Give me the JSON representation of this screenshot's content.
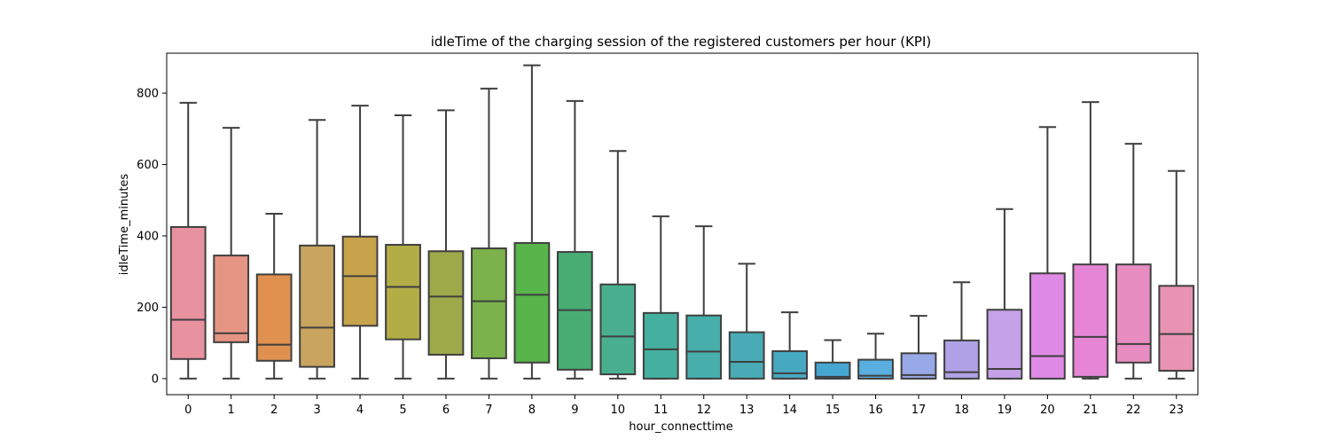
{
  "chart_data": {
    "type": "box",
    "title": "idleTime of the charging session of the registered customers per hour (KPI)",
    "xlabel": "hour_connecttime",
    "ylabel": "idleTime_minutes",
    "ylim": [
      -45,
      912
    ],
    "yticks": [
      0,
      200,
      400,
      600,
      800
    ],
    "grid": false,
    "categories": [
      "0",
      "1",
      "2",
      "3",
      "4",
      "5",
      "6",
      "7",
      "8",
      "9",
      "10",
      "11",
      "12",
      "13",
      "14",
      "15",
      "16",
      "17",
      "18",
      "19",
      "20",
      "21",
      "22",
      "23"
    ],
    "boxes": [
      {
        "whisker_low": 0,
        "q1": 55,
        "median": 165,
        "q3": 425,
        "whisker_high": 773,
        "color": "#e8919f"
      },
      {
        "whisker_low": 0,
        "q1": 102,
        "median": 127,
        "q3": 345,
        "whisker_high": 703,
        "color": "#e69584"
      },
      {
        "whisker_low": 0,
        "q1": 50,
        "median": 95,
        "q3": 292,
        "whisker_high": 462,
        "color": "#e0914f"
      },
      {
        "whisker_low": 0,
        "q1": 33,
        "median": 143,
        "q3": 373,
        "whisker_high": 725,
        "color": "#c8a45e"
      },
      {
        "whisker_low": 0,
        "q1": 148,
        "median": 287,
        "q3": 398,
        "whisker_high": 765,
        "color": "#c7a34b"
      },
      {
        "whisker_low": 0,
        "q1": 110,
        "median": 257,
        "q3": 375,
        "whisker_high": 738,
        "color": "#b3ad46"
      },
      {
        "whisker_low": 0,
        "q1": 67,
        "median": 230,
        "q3": 357,
        "whisker_high": 752,
        "color": "#9ea94a"
      },
      {
        "whisker_low": 0,
        "q1": 57,
        "median": 217,
        "q3": 365,
        "whisker_high": 813,
        "color": "#7bb24b"
      },
      {
        "whisker_low": 0,
        "q1": 45,
        "median": 235,
        "q3": 380,
        "whisker_high": 878,
        "color": "#58b54b"
      },
      {
        "whisker_low": 0,
        "q1": 25,
        "median": 192,
        "q3": 355,
        "whisker_high": 778,
        "color": "#48ad73"
      },
      {
        "whisker_low": 0,
        "q1": 12,
        "median": 118,
        "q3": 264,
        "whisker_high": 638,
        "color": "#4aaf8e"
      },
      {
        "whisker_low": 0,
        "q1": 0,
        "median": 82,
        "q3": 184,
        "whisker_high": 455,
        "color": "#46b0a0"
      },
      {
        "whisker_low": 0,
        "q1": 0,
        "median": 76,
        "q3": 177,
        "whisker_high": 427,
        "color": "#47aeab"
      },
      {
        "whisker_low": 0,
        "q1": 0,
        "median": 47,
        "q3": 130,
        "whisker_high": 322,
        "color": "#48abb5"
      },
      {
        "whisker_low": 0,
        "q1": 0,
        "median": 15,
        "q3": 77,
        "whisker_high": 186,
        "color": "#47a9c0"
      },
      {
        "whisker_low": 0,
        "q1": 0,
        "median": 5,
        "q3": 45,
        "whisker_high": 108,
        "color": "#45a6d2"
      },
      {
        "whisker_low": 0,
        "q1": 0,
        "median": 8,
        "q3": 53,
        "whisker_high": 126,
        "color": "#5aaee0"
      },
      {
        "whisker_low": 0,
        "q1": 0,
        "median": 10,
        "q3": 71,
        "whisker_high": 176,
        "color": "#98a9e8"
      },
      {
        "whisker_low": 0,
        "q1": 0,
        "median": 18,
        "q3": 107,
        "whisker_high": 270,
        "color": "#b0a2e6"
      },
      {
        "whisker_low": 0,
        "q1": 0,
        "median": 27,
        "q3": 193,
        "whisker_high": 475,
        "color": "#c4a1e8"
      },
      {
        "whisker_low": 0,
        "q1": 0,
        "median": 63,
        "q3": 295,
        "whisker_high": 705,
        "color": "#df8ae5"
      },
      {
        "whisker_low": 0,
        "q1": 5,
        "median": 117,
        "q3": 320,
        "whisker_high": 775,
        "color": "#e685d5"
      },
      {
        "whisker_low": 0,
        "q1": 45,
        "median": 97,
        "q3": 320,
        "whisker_high": 658,
        "color": "#e88dc1"
      },
      {
        "whisker_low": 0,
        "q1": 22,
        "median": 125,
        "q3": 260,
        "whisker_high": 582,
        "color": "#e893b2"
      }
    ]
  }
}
